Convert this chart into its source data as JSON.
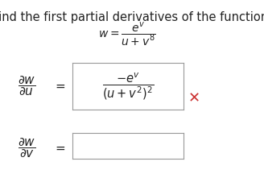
{
  "title": "Find the first partial derivatives of the function.",
  "title_fontsize": 10.5,
  "title_color": "#222222",
  "background_color": "#ffffff",
  "text_color": "#222222",
  "box_edge_color": "#999999",
  "cross_color": "#cc3333",
  "math_fontsize": 11
}
